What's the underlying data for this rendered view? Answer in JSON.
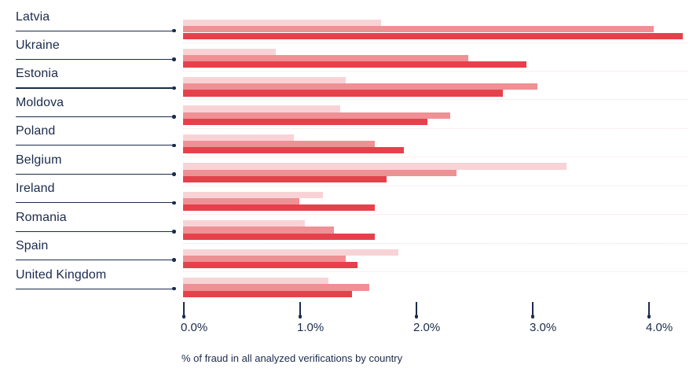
{
  "caption": "% of fraud in all analyzed verifications by country",
  "colors": {
    "navy_text": "#1b2b4b",
    "bar_light": "#f8d3d6",
    "bar_medium": "#ef9095",
    "bar_dark": "#e6414b",
    "row_separator": "#f7dedd",
    "background": "#ffffff"
  },
  "chart_data": {
    "type": "bar",
    "orientation": "horizontal",
    "title": "",
    "xlabel": "% of fraud in all analyzed verifications by country",
    "ylabel": "",
    "categories": [
      "Latvia",
      "Ukraine",
      "Estonia",
      "Moldova",
      "Poland",
      "Belgium",
      "Ireland",
      "Romania",
      "Spain",
      "United Kingdom"
    ],
    "series": [
      {
        "name": "series-light-pink",
        "color": "#f8d3d6",
        "values": [
          1.7,
          0.8,
          1.4,
          1.35,
          0.95,
          3.3,
          1.2,
          1.05,
          1.85,
          1.25
        ]
      },
      {
        "name": "series-medium-pink",
        "color": "#ef9095",
        "values": [
          4.05,
          2.45,
          3.05,
          2.3,
          1.65,
          2.35,
          1.0,
          1.3,
          1.4,
          1.6
        ]
      },
      {
        "name": "series-dark-red",
        "color": "#e6414b",
        "values": [
          4.3,
          2.95,
          2.75,
          2.1,
          1.9,
          1.75,
          1.65,
          1.65,
          1.5,
          1.45
        ]
      }
    ],
    "x_ticks": [
      {
        "label": "0.0%",
        "value": 0
      },
      {
        "label": "1.0%",
        "value": 1
      },
      {
        "label": "2.0%",
        "value": 2
      },
      {
        "label": "3.0%",
        "value": 3
      },
      {
        "label": "4.0%",
        "value": 4
      }
    ],
    "xlim": [
      0,
      4.38
    ],
    "grid": false,
    "legend_position": "none"
  }
}
